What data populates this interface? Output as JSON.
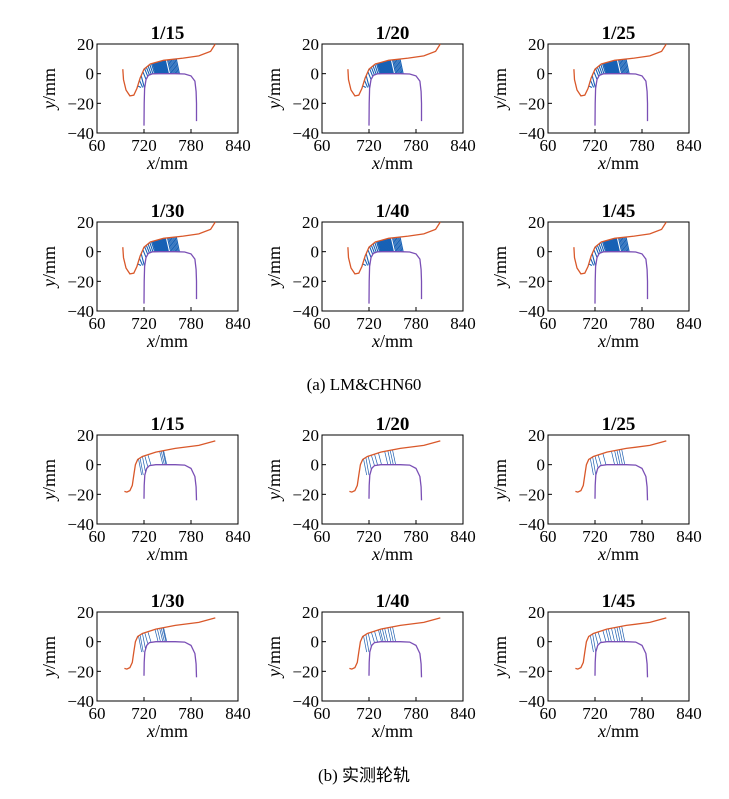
{
  "captions": {
    "a": "(a) LM&CHN60",
    "b": "(b) 实测轮轨"
  },
  "colors": {
    "wheel_profile": "#d9582a",
    "rail_profile": "#7a4fb5",
    "contact_lines": "#1f5fb0"
  },
  "chart_data": [
    {
      "type": "line",
      "group": "a",
      "title": "1/15",
      "xlabel_var": "x",
      "xlabel_unit": "/mm",
      "ylabel_var": "y",
      "ylabel_unit": "/mm",
      "xticks": [
        "60",
        "720",
        "780",
        "840"
      ],
      "yticks": [
        "20",
        "0",
        "−20",
        "−40"
      ],
      "xlim": [
        660,
        840
      ],
      "ylim": [
        -40,
        20
      ],
      "profile": "standard",
      "contact_density": "dense"
    },
    {
      "type": "line",
      "group": "a",
      "title": "1/20",
      "xlabel_var": "x",
      "xlabel_unit": "/mm",
      "ylabel_var": "y",
      "ylabel_unit": "/mm",
      "xticks": [
        "60",
        "720",
        "780",
        "840"
      ],
      "yticks": [
        "20",
        "0",
        "−20",
        "−40"
      ],
      "xlim": [
        660,
        840
      ],
      "ylim": [
        -40,
        20
      ],
      "profile": "standard",
      "contact_density": "dense"
    },
    {
      "type": "line",
      "group": "a",
      "title": "1/25",
      "xlabel_var": "x",
      "xlabel_unit": "/mm",
      "ylabel_var": "y",
      "ylabel_unit": "/mm",
      "xticks": [
        "60",
        "720",
        "780",
        "840"
      ],
      "yticks": [
        "20",
        "0",
        "−20",
        "−40"
      ],
      "xlim": [
        660,
        840
      ],
      "ylim": [
        -40,
        20
      ],
      "profile": "standard",
      "contact_density": "dense"
    },
    {
      "type": "line",
      "group": "a",
      "title": "1/30",
      "xlabel_var": "x",
      "xlabel_unit": "/mm",
      "ylabel_var": "y",
      "ylabel_unit": "/mm",
      "xticks": [
        "60",
        "720",
        "780",
        "840"
      ],
      "yticks": [
        "20",
        "0",
        "−20",
        "−40"
      ],
      "xlim": [
        660,
        840
      ],
      "ylim": [
        -40,
        20
      ],
      "profile": "standard",
      "contact_density": "dense"
    },
    {
      "type": "line",
      "group": "a",
      "title": "1/40",
      "xlabel_var": "x",
      "xlabel_unit": "/mm",
      "ylabel_var": "y",
      "ylabel_unit": "/mm",
      "xticks": [
        "60",
        "720",
        "780",
        "840"
      ],
      "yticks": [
        "20",
        "0",
        "−20",
        "−40"
      ],
      "xlim": [
        660,
        840
      ],
      "ylim": [
        -40,
        20
      ],
      "profile": "standard",
      "contact_density": "dense"
    },
    {
      "type": "line",
      "group": "a",
      "title": "1/45",
      "xlabel_var": "x",
      "xlabel_unit": "/mm",
      "ylabel_var": "y",
      "ylabel_unit": "/mm",
      "xticks": [
        "60",
        "720",
        "780",
        "840"
      ],
      "yticks": [
        "20",
        "0",
        "−20",
        "−40"
      ],
      "xlim": [
        660,
        840
      ],
      "ylim": [
        -40,
        20
      ],
      "profile": "standard",
      "contact_density": "dense"
    },
    {
      "type": "line",
      "group": "b",
      "title": "1/15",
      "xlabel_var": "x",
      "xlabel_unit": "/mm",
      "ylabel_var": "y",
      "ylabel_unit": "/mm",
      "xticks": [
        "60",
        "720",
        "780",
        "840"
      ],
      "yticks": [
        "20",
        "0",
        "−20",
        "−40"
      ],
      "xlim": [
        660,
        840
      ],
      "ylim": [
        -40,
        20
      ],
      "profile": "measured",
      "contact_density": "sparse"
    },
    {
      "type": "line",
      "group": "b",
      "title": "1/20",
      "xlabel_var": "x",
      "xlabel_unit": "/mm",
      "ylabel_var": "y",
      "ylabel_unit": "/mm",
      "xticks": [
        "60",
        "720",
        "780",
        "840"
      ],
      "yticks": [
        "20",
        "0",
        "−20",
        "−40"
      ],
      "xlim": [
        660,
        840
      ],
      "ylim": [
        -40,
        20
      ],
      "profile": "measured",
      "contact_density": "sparse"
    },
    {
      "type": "line",
      "group": "b",
      "title": "1/25",
      "xlabel_var": "x",
      "xlabel_unit": "/mm",
      "ylabel_var": "y",
      "ylabel_unit": "/mm",
      "xticks": [
        "60",
        "720",
        "780",
        "840"
      ],
      "yticks": [
        "20",
        "0",
        "−20",
        "−40"
      ],
      "xlim": [
        660,
        840
      ],
      "ylim": [
        -40,
        20
      ],
      "profile": "measured",
      "contact_density": "sparse"
    },
    {
      "type": "line",
      "group": "b",
      "title": "1/30",
      "xlabel_var": "x",
      "xlabel_unit": "/mm",
      "ylabel_var": "y",
      "ylabel_unit": "/mm",
      "xticks": [
        "60",
        "720",
        "780",
        "840"
      ],
      "yticks": [
        "20",
        "0",
        "−20",
        "−40"
      ],
      "xlim": [
        660,
        840
      ],
      "ylim": [
        -40,
        20
      ],
      "profile": "measured",
      "contact_density": "sparse"
    },
    {
      "type": "line",
      "group": "b",
      "title": "1/40",
      "xlabel_var": "x",
      "xlabel_unit": "/mm",
      "ylabel_var": "y",
      "ylabel_unit": "/mm",
      "xticks": [
        "60",
        "720",
        "780",
        "840"
      ],
      "yticks": [
        "20",
        "0",
        "−20",
        "−40"
      ],
      "xlim": [
        660,
        840
      ],
      "ylim": [
        -40,
        20
      ],
      "profile": "measured",
      "contact_density": "sparse"
    },
    {
      "type": "line",
      "group": "b",
      "title": "1/45",
      "xlabel_var": "x",
      "xlabel_unit": "/mm",
      "ylabel_var": "y",
      "ylabel_unit": "/mm",
      "xticks": [
        "60",
        "720",
        "780",
        "840"
      ],
      "yticks": [
        "20",
        "0",
        "−20",
        "−40"
      ],
      "xlim": [
        660,
        840
      ],
      "ylim": [
        -40,
        20
      ],
      "profile": "measured",
      "contact_density": "sparse"
    }
  ]
}
